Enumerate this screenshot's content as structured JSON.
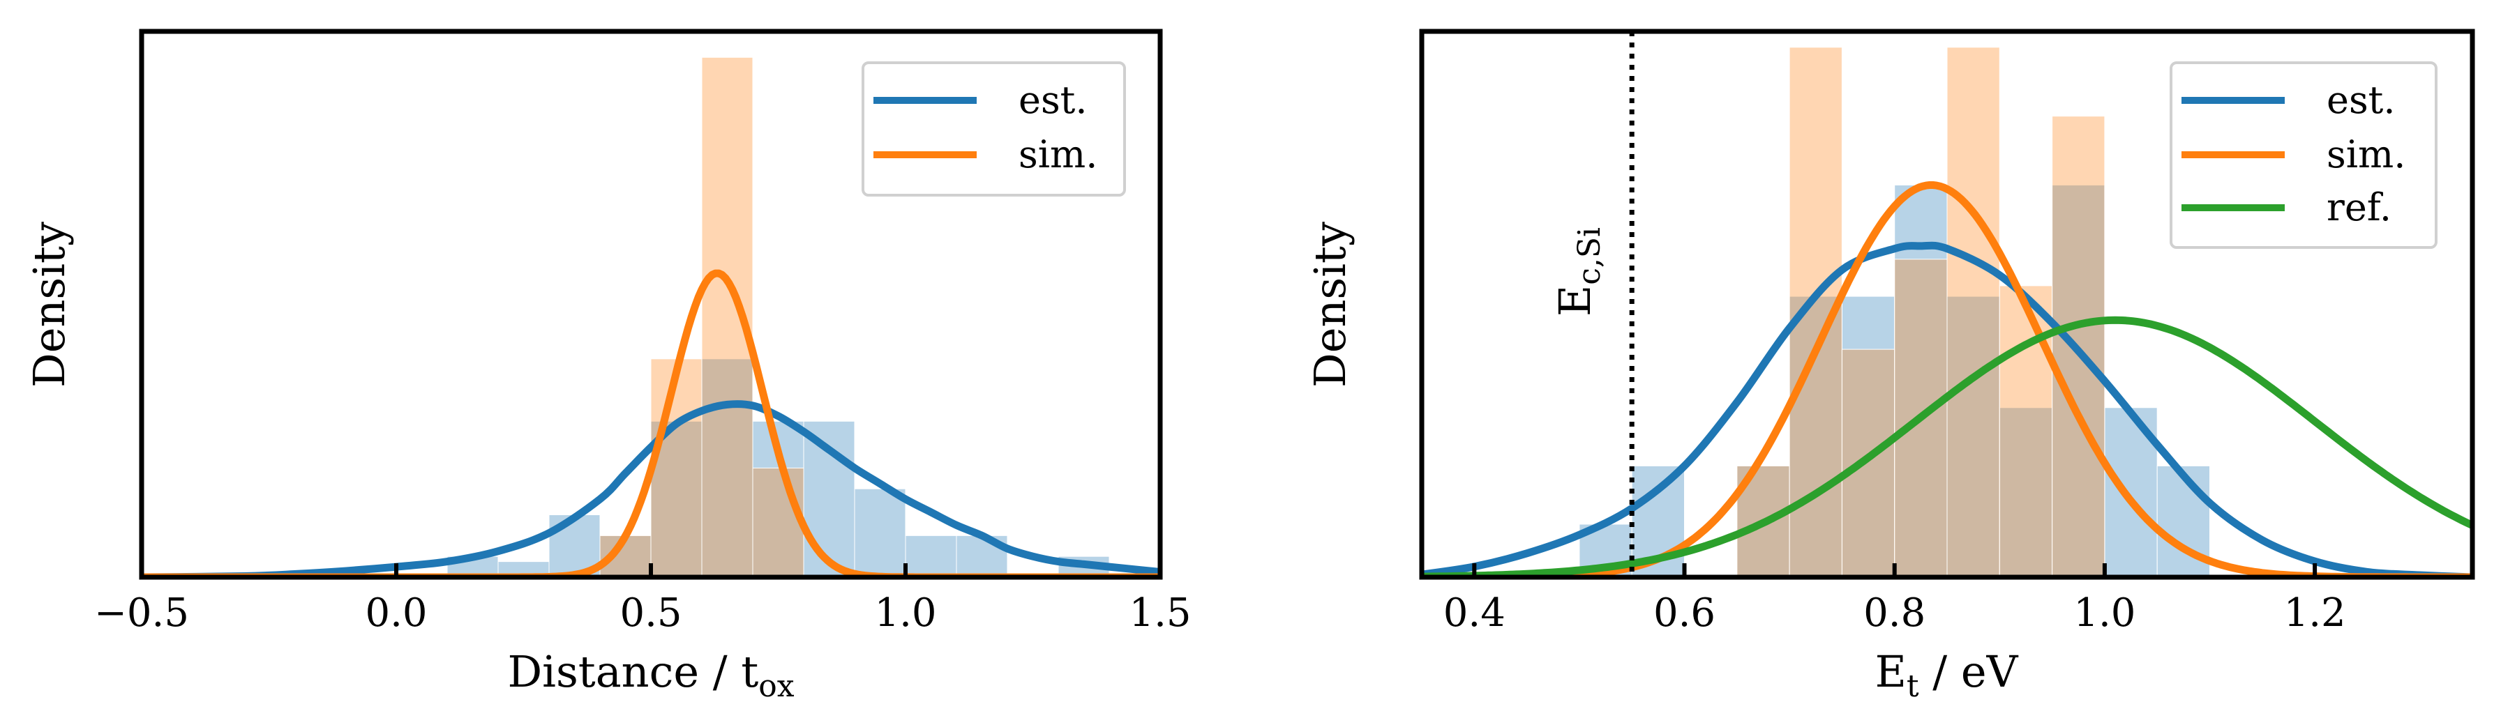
{
  "chart_data": [
    {
      "type": "bar",
      "xlabel": "Distance / t",
      "xlabel_sub": "ox",
      "ylabel": "Density",
      "xlim": [
        -0.5,
        1.5
      ],
      "ylim": [
        0,
        10.5
      ],
      "xticks": [
        -0.5,
        0.0,
        0.5,
        1.0,
        1.5
      ],
      "xtick_labels": [
        "−0.5",
        "0.0",
        "0.5",
        "1.0",
        "1.5"
      ],
      "grid": false,
      "legend_position": "top-right",
      "histograms": [
        {
          "series": "est.",
          "color": "#1f77b4",
          "bin_width": 0.1,
          "bins": [
            {
              "x0": 0.1,
              "h": 0.4
            },
            {
              "x0": 0.2,
              "h": 0.3
            },
            {
              "x0": 0.3,
              "h": 1.2
            },
            {
              "x0": 0.4,
              "h": 0.8
            },
            {
              "x0": 0.5,
              "h": 3.0
            },
            {
              "x0": 0.6,
              "h": 4.2
            },
            {
              "x0": 0.7,
              "h": 3.0
            },
            {
              "x0": 0.8,
              "h": 3.0
            },
            {
              "x0": 0.9,
              "h": 1.7
            },
            {
              "x0": 1.0,
              "h": 0.8
            },
            {
              "x0": 1.1,
              "h": 0.8
            },
            {
              "x0": 1.3,
              "h": 0.4
            }
          ]
        },
        {
          "series": "sim.",
          "color": "#ff7f0e",
          "bin_width": 0.1,
          "bins": [
            {
              "x0": 0.4,
              "h": 0.8
            },
            {
              "x0": 0.5,
              "h": 4.2
            },
            {
              "x0": 0.6,
              "h": 10.0
            },
            {
              "x0": 0.7,
              "h": 2.1
            }
          ]
        }
      ],
      "curves": [
        {
          "name": "est.",
          "color": "#1f77b4",
          "x": [
            -0.5,
            -0.3,
            -0.2,
            -0.1,
            0.0,
            0.1,
            0.2,
            0.3,
            0.4,
            0.45,
            0.5,
            0.55,
            0.6,
            0.65,
            0.7,
            0.75,
            0.8,
            0.85,
            0.9,
            0.95,
            1.0,
            1.05,
            1.1,
            1.15,
            1.2,
            1.25,
            1.3,
            1.35,
            1.4,
            1.45,
            1.5
          ],
          "y": [
            0.0,
            0.02,
            0.06,
            0.12,
            0.2,
            0.3,
            0.5,
            0.85,
            1.5,
            2.0,
            2.5,
            2.95,
            3.2,
            3.32,
            3.3,
            3.1,
            2.8,
            2.45,
            2.1,
            1.8,
            1.5,
            1.25,
            1.0,
            0.8,
            0.55,
            0.4,
            0.3,
            0.25,
            0.2,
            0.15,
            0.1
          ]
        },
        {
          "name": "sim.",
          "color": "#ff7f0e",
          "mean": 0.63,
          "sd": 0.09,
          "peak": 5.85
        }
      ],
      "legend": [
        {
          "label": "est.",
          "color": "#1f77b4"
        },
        {
          "label": "sim.",
          "color": "#ff7f0e"
        }
      ]
    },
    {
      "type": "bar",
      "xlabel": "E",
      "xlabel_sub": "t",
      "xlabel_suffix": " / eV",
      "ylabel": "Density",
      "xlim": [
        0.35,
        1.35
      ],
      "ylim": [
        0,
        10.3
      ],
      "xticks": [
        0.4,
        0.6,
        0.8,
        1.0,
        1.2
      ],
      "xtick_labels": [
        "0.4",
        "0.6",
        "0.8",
        "1.0",
        "1.2"
      ],
      "grid": false,
      "legend_position": "top-right",
      "vline": {
        "x": 0.55,
        "style": "dotted",
        "label": "E",
        "label_sub": "c,Si"
      },
      "histograms": [
        {
          "series": "est.",
          "color": "#1f77b4",
          "bin_width": 0.05,
          "bins": [
            {
              "x0": 0.5,
              "h": 1.0
            },
            {
              "x0": 0.55,
              "h": 2.1
            },
            {
              "x0": 0.65,
              "h": 2.1
            },
            {
              "x0": 0.7,
              "h": 5.3
            },
            {
              "x0": 0.75,
              "h": 5.3
            },
            {
              "x0": 0.8,
              "h": 7.4
            },
            {
              "x0": 0.85,
              "h": 5.3
            },
            {
              "x0": 0.9,
              "h": 3.2
            },
            {
              "x0": 0.95,
              "h": 7.4
            },
            {
              "x0": 1.0,
              "h": 3.2
            },
            {
              "x0": 1.05,
              "h": 2.1
            }
          ]
        },
        {
          "series": "sim.",
          "color": "#ff7f0e",
          "bin_width": 0.05,
          "bins": [
            {
              "x0": 0.65,
              "h": 2.1
            },
            {
              "x0": 0.7,
              "h": 10.0
            },
            {
              "x0": 0.75,
              "h": 4.3
            },
            {
              "x0": 0.8,
              "h": 6.0
            },
            {
              "x0": 0.85,
              "h": 10.0
            },
            {
              "x0": 0.9,
              "h": 5.5
            },
            {
              "x0": 0.95,
              "h": 8.7
            }
          ]
        }
      ],
      "curves": [
        {
          "name": "est.",
          "color": "#1f77b4",
          "x": [
            0.35,
            0.4,
            0.45,
            0.5,
            0.55,
            0.6,
            0.65,
            0.7,
            0.75,
            0.8,
            0.825,
            0.85,
            0.9,
            0.95,
            1.0,
            1.05,
            1.1,
            1.15,
            1.2,
            1.25,
            1.3,
            1.35
          ],
          "y": [
            0.05,
            0.2,
            0.45,
            0.8,
            1.3,
            2.1,
            3.3,
            4.7,
            5.8,
            6.2,
            6.25,
            6.2,
            5.7,
            4.8,
            3.7,
            2.5,
            1.4,
            0.7,
            0.3,
            0.1,
            0.04,
            0.0
          ]
        },
        {
          "name": "sim.",
          "color": "#ff7f0e",
          "mean": 0.835,
          "sd": 0.105,
          "peak": 7.4
        },
        {
          "name": "ref.",
          "color": "#2ca02c",
          "mean": 1.01,
          "sd": 0.19,
          "peak": 4.85
        }
      ],
      "legend": [
        {
          "label": "est.",
          "color": "#1f77b4"
        },
        {
          "label": "sim.",
          "color": "#ff7f0e"
        },
        {
          "label": "ref.",
          "color": "#2ca02c"
        }
      ]
    }
  ]
}
